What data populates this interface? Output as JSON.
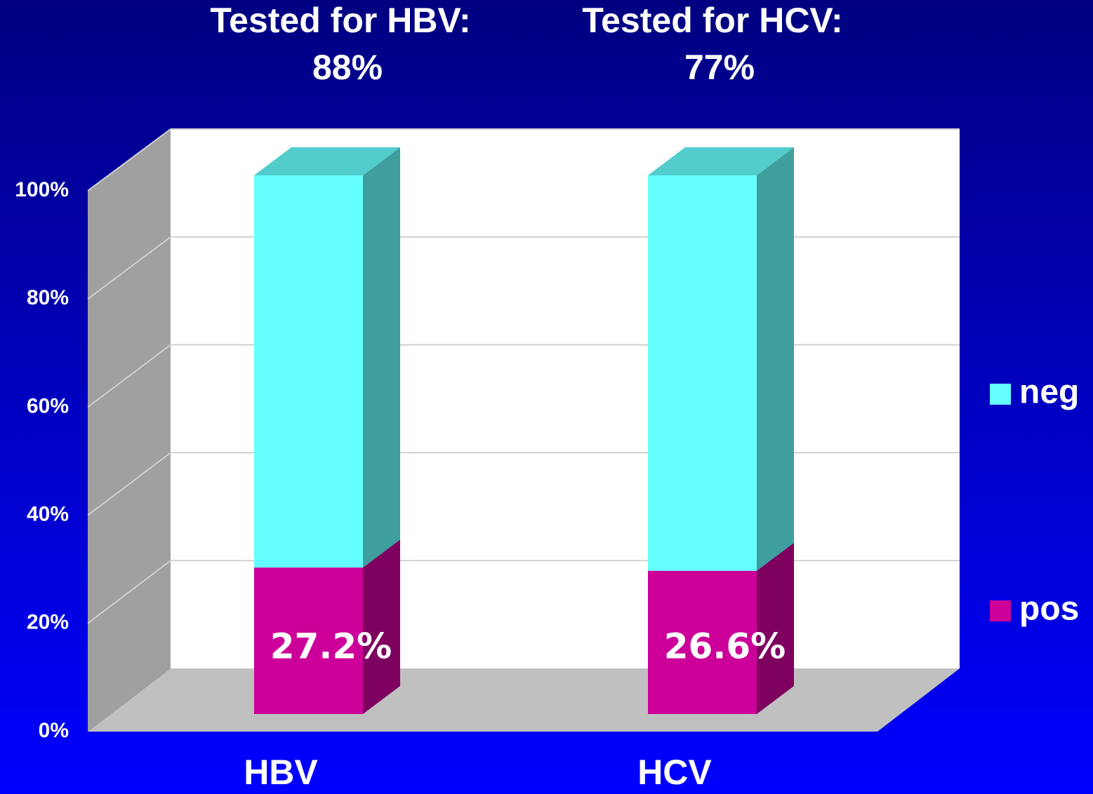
{
  "chart_data": {
    "type": "stacked_bar_3d",
    "annotations": [
      "Tested for HBV:",
      "88%",
      "Tested for HCV:",
      "77%"
    ],
    "categories": [
      "HBV",
      "HCV"
    ],
    "series": [
      {
        "name": "pos",
        "color": "#cc0099",
        "values": [
          27.2,
          26.6
        ],
        "value_labels": [
          "27.2%",
          "26.6%"
        ]
      },
      {
        "name": "neg",
        "color": "#66ffff",
        "values": [
          72.8,
          73.4
        ]
      }
    ],
    "ylim": [
      0,
      100
    ],
    "yticks": [
      {
        "value": 0,
        "label": "0%"
      },
      {
        "value": 20,
        "label": "20%"
      },
      {
        "value": 40,
        "label": "40%"
      },
      {
        "value": 60,
        "label": "60%"
      },
      {
        "value": 80,
        "label": "80%"
      },
      {
        "value": 100,
        "label": "100%"
      }
    ],
    "grid": true,
    "legend": "right"
  }
}
